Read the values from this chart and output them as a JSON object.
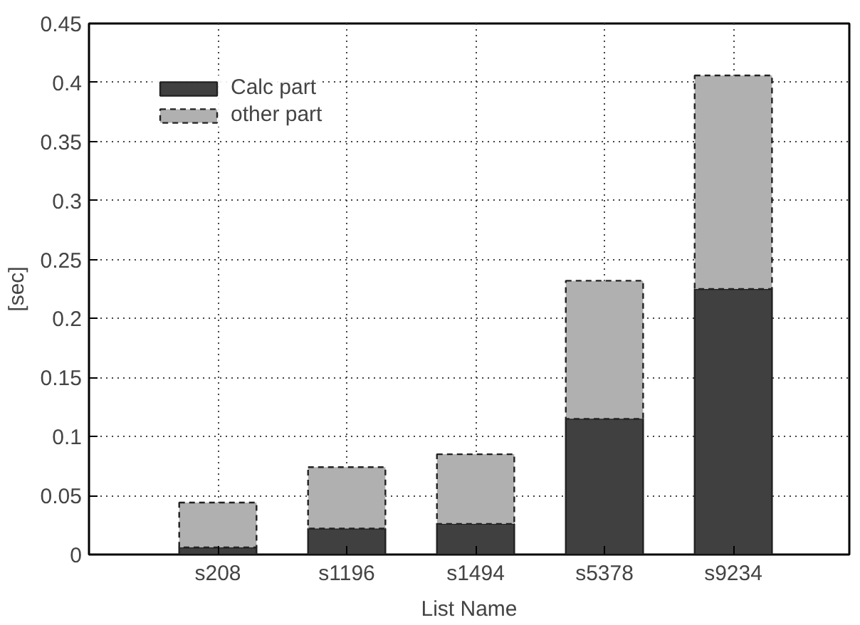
{
  "chart_data": {
    "type": "bar",
    "stacked": true,
    "xlabel": "List Name",
    "ylabel": "[sec]",
    "categories": [
      "s208",
      "s1196",
      "s1494",
      "s5378",
      "s9234"
    ],
    "series": [
      {
        "name": "Calc part",
        "color": "#404040",
        "values": [
          0.006,
          0.022,
          0.026,
          0.115,
          0.225
        ]
      },
      {
        "name": "other part",
        "color": "#b0b0b0",
        "line_style": "dashed",
        "values": [
          0.038,
          0.052,
          0.059,
          0.117,
          0.181
        ]
      }
    ],
    "ylim": [
      0,
      0.45
    ],
    "yticks": [
      0,
      0.05,
      0.1,
      0.15,
      0.2,
      0.25,
      0.3,
      0.35,
      0.4,
      0.45
    ],
    "grid": true,
    "legend": "top left"
  }
}
